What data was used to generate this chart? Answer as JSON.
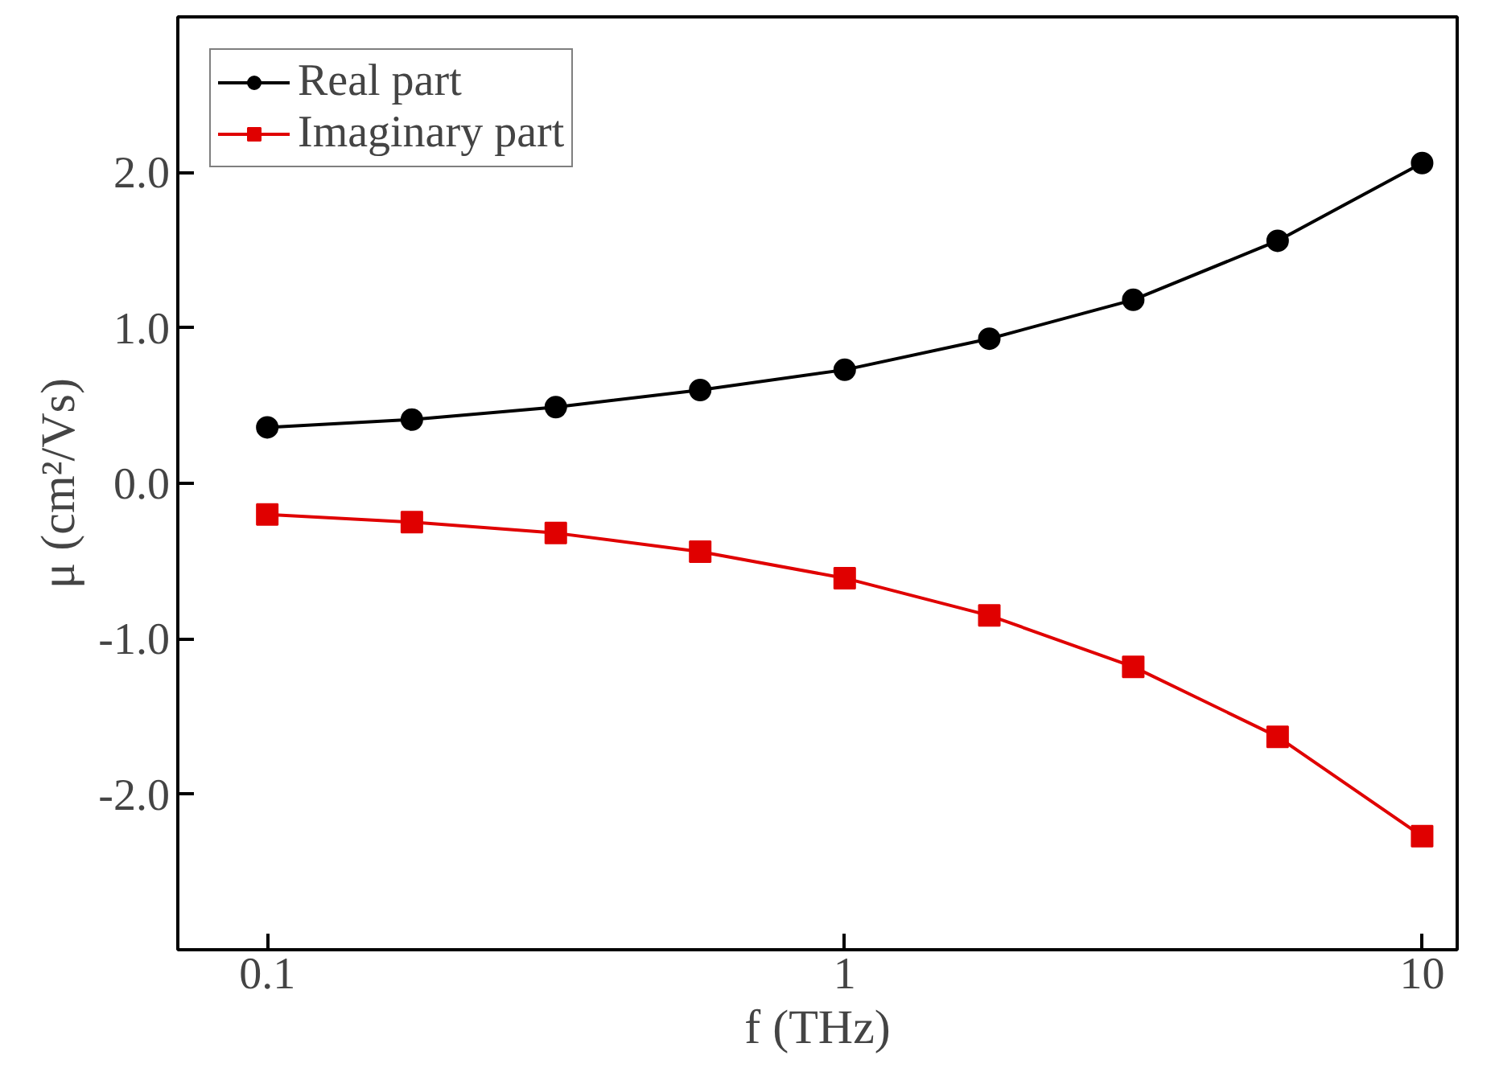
{
  "chart_data": {
    "type": "line",
    "xlabel": "f (THz)",
    "ylabel": "μ (cm²/Vs)",
    "log": "x",
    "x": [
      0.1,
      0.178,
      0.316,
      0.562,
      1,
      1.78,
      3.16,
      5.62,
      10
    ],
    "series": [
      {
        "name": "Real part",
        "color": "#000000",
        "marker": "circle",
        "values": [
          0.36,
          0.41,
          0.49,
          0.6,
          0.73,
          0.93,
          1.18,
          1.56,
          2.06
        ]
      },
      {
        "name": "Imaginary part",
        "color": "#e00000",
        "marker": "square",
        "values": [
          -0.2,
          -0.25,
          -0.32,
          -0.44,
          -0.61,
          -0.85,
          -1.18,
          -1.63,
          -2.27
        ]
      }
    ],
    "xlim": [
      0.07,
      11.5
    ],
    "ylim": [
      -3,
      3
    ],
    "xticks": [
      0.1,
      1,
      10
    ],
    "yticks": [
      {
        "value": -2,
        "label": "-2.0"
      },
      {
        "value": -1,
        "label": "-1.0"
      },
      {
        "value": 0,
        "label": "0.0"
      },
      {
        "value": 1,
        "label": "1.0"
      },
      {
        "value": 2,
        "label": "2.0"
      }
    ],
    "grid": false,
    "legend": "top left",
    "line_style": "solid"
  }
}
